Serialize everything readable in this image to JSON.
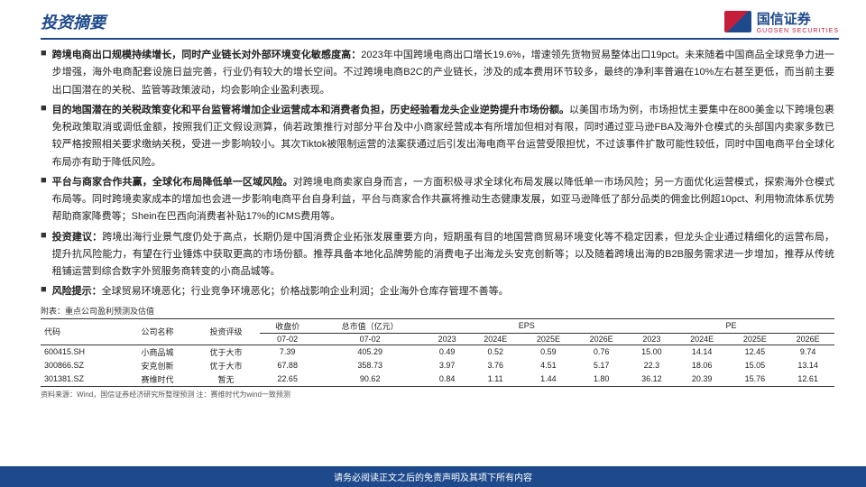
{
  "header": {
    "title": "投资摘要",
    "brand": "国信证券",
    "brand_sub": "GUOSEN SECURITIES"
  },
  "bullets": [
    {
      "bold": "跨境电商出口规模持续增长，同时产业链长对外部环境变化敏感度高：",
      "text": "2023年中国跨境电商出口增长19.6%，增速领先货物贸易整体出口19pct。未来随着中国商品全球竞争力进一步增强，海外电商配套设施日益完善，行业仍有较大的增长空间。不过跨境电商B2C的产业链长，涉及的成本费用环节较多，最终的净利率普遍在10%左右甚至更低，而当前主要出口国潜在的关税、监管等政策波动，均会影响企业盈利表现。"
    },
    {
      "bold": "目的地国潜在的关税政策变化和平台监管将增加企业运营成本和消费者负担，历史经验看龙头企业逆势提升市场份额。",
      "text": "以美国市场为例，市场担忧主要集中在800美金以下跨境包裹免税政策取消或调低金额，按照我们正文假设测算，倘若政策推行对部分平台及中小商家经营成本有所增加但相对有限，同时通过亚马逊FBA及海外仓模式的头部国内卖家多数已较严格按照相关要求缴纳关税，受进一步影响较小。其次Tiktok被限制运营的法案获通过后引发出海电商平台运营受限担忧，不过该事件扩散可能性较低，同时中国电商平台全球化布局亦有助于降低风险。"
    },
    {
      "bold": "平台与商家合作共赢，全球化布局降低单一区域风险。",
      "text": "对跨境电商卖家自身而言，一方面积极寻求全球化布局发展以降低单一市场风险；另一方面优化运营模式，探索海外仓模式布局等。同时跨境卖家成本的增加也会进一步影响电商平台自身利益，平台与商家合作共赢将推动生态健康发展，如亚马逊降低了部分品类的佣金比例超10pct、利用物流体系优势帮助商家降费等；Shein在巴西向消费者补贴17%的ICMS费用等。"
    },
    {
      "bold": "投资建议：",
      "text": "跨境出海行业景气度仍处于高点，长期仍是中国消费企业拓张发展重要方向，短期虽有目的地国营商贸易环境变化等不稳定因素，但龙头企业通过精细化的运营布局，提升抗风险能力，有望在行业锤炼中获取更高的市场份额。推荐具备本地化品牌势能的消费电子出海龙头安克创新等；以及随着跨境出海的B2B服务需求进一步增加，推荐从传统租铺运营到综合数字外贸服务商转变的小商品城等。"
    },
    {
      "bold": "风险提示：",
      "text": "全球贸易环境恶化；行业竞争环境恶化；价格战影响企业利润；企业海外仓库存管理不善等。"
    }
  ],
  "table": {
    "caption": "附表：重点公司盈利预测及估值",
    "headers": {
      "code": "代码",
      "name": "公司名称",
      "rating": "投资评级",
      "close": "收盘价",
      "closeDate": "07-02",
      "mcap": "总市值（亿元）",
      "mcapDate": "07-02",
      "eps": "EPS",
      "pe": "PE",
      "y2023": "2023",
      "y2024e": "2024E",
      "y2025e": "2025E",
      "y2026e": "2026E"
    },
    "rows": [
      {
        "code": "600415.SH",
        "name": "小商品城",
        "rating": "优于大市",
        "close": "7.39",
        "mcap": "405.29",
        "eps": [
          "0.49",
          "0.52",
          "0.59",
          "0.76"
        ],
        "pe": [
          "15.00",
          "14.14",
          "12.45",
          "9.74"
        ]
      },
      {
        "code": "300866.SZ",
        "name": "安克创新",
        "rating": "优于大市",
        "close": "67.88",
        "mcap": "358.73",
        "eps": [
          "3.97",
          "3.76",
          "4.51",
          "5.17"
        ],
        "pe": [
          "22.3",
          "18.06",
          "15.05",
          "13.14"
        ]
      },
      {
        "code": "301381.SZ",
        "name": "赛维时代",
        "rating": "暂无",
        "close": "22.65",
        "mcap": "90.62",
        "eps": [
          "0.84",
          "1.11",
          "1.44",
          "1.80"
        ],
        "pe": [
          "36.12",
          "20.39",
          "15.76",
          "12.61"
        ]
      }
    ],
    "note": "资料来源：Wind，国信证券经济研究所整理预测  注：赛维时代为wind一致预测"
  },
  "footer": "请务必阅读正文之后的免责声明及其项下所有内容"
}
